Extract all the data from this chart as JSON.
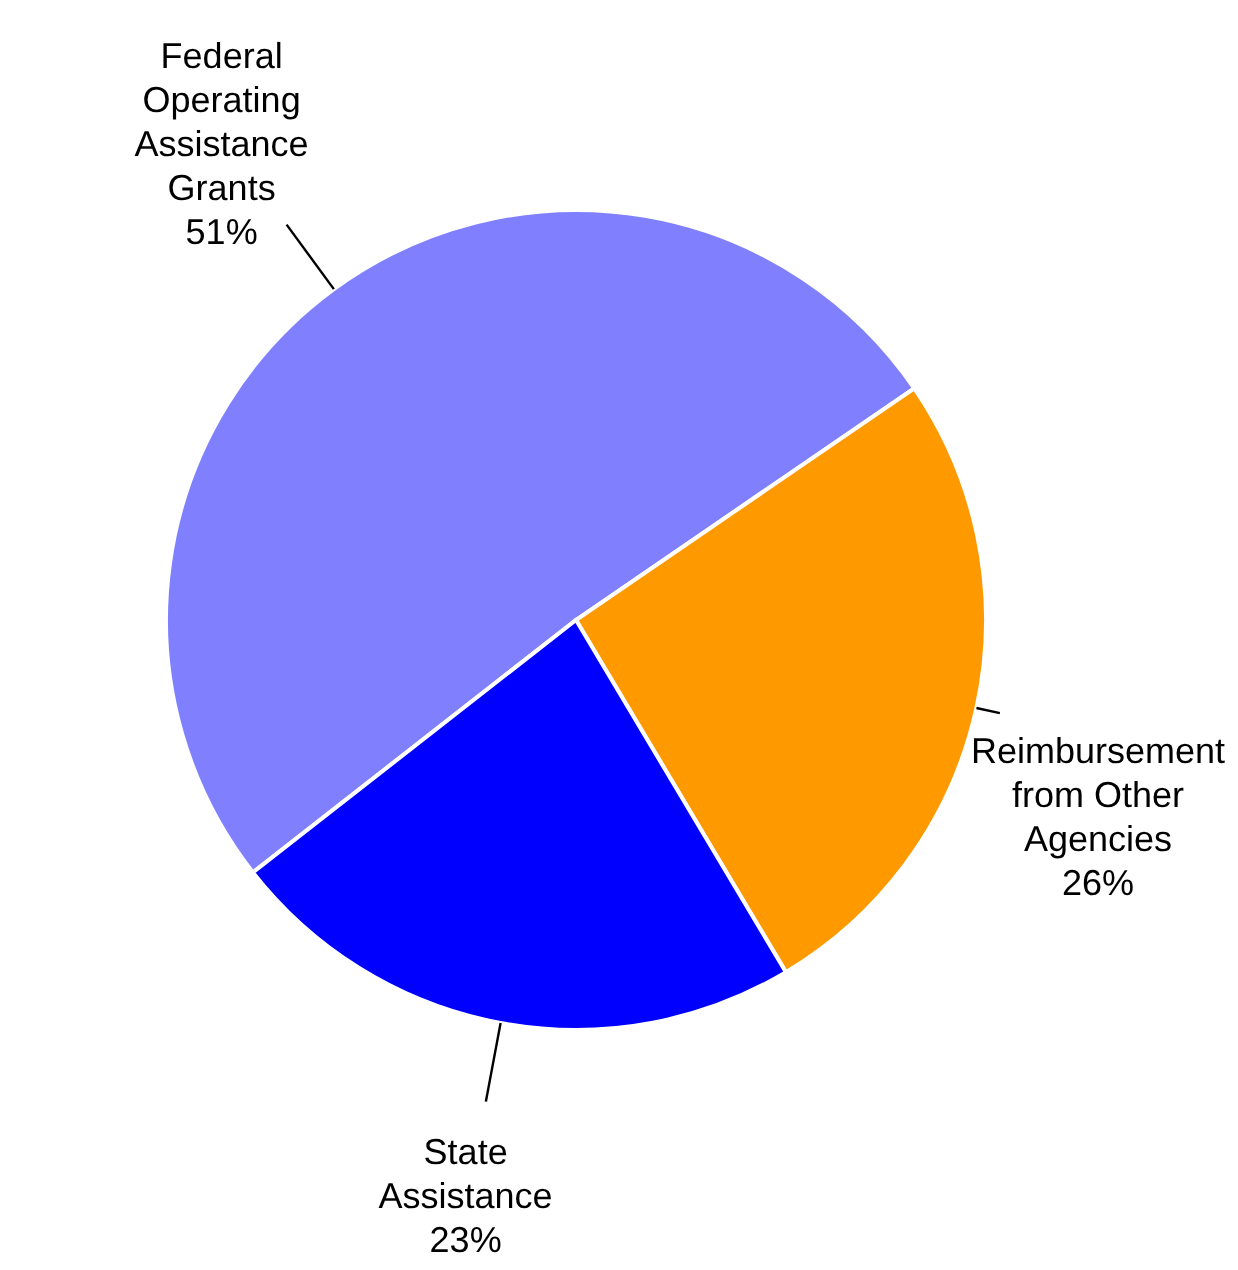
{
  "chart_data": {
    "type": "pie",
    "categories": [
      "Federal Operating Assistance Grants",
      "Reimbursement from Other Agencies",
      "State Assistance"
    ],
    "values": [
      51,
      26,
      23
    ],
    "colors": [
      "#8080ff",
      "#ff9900",
      "#0000ff"
    ],
    "value_labels": [
      "51%",
      "26%",
      "23%"
    ],
    "legend": false
  }
}
